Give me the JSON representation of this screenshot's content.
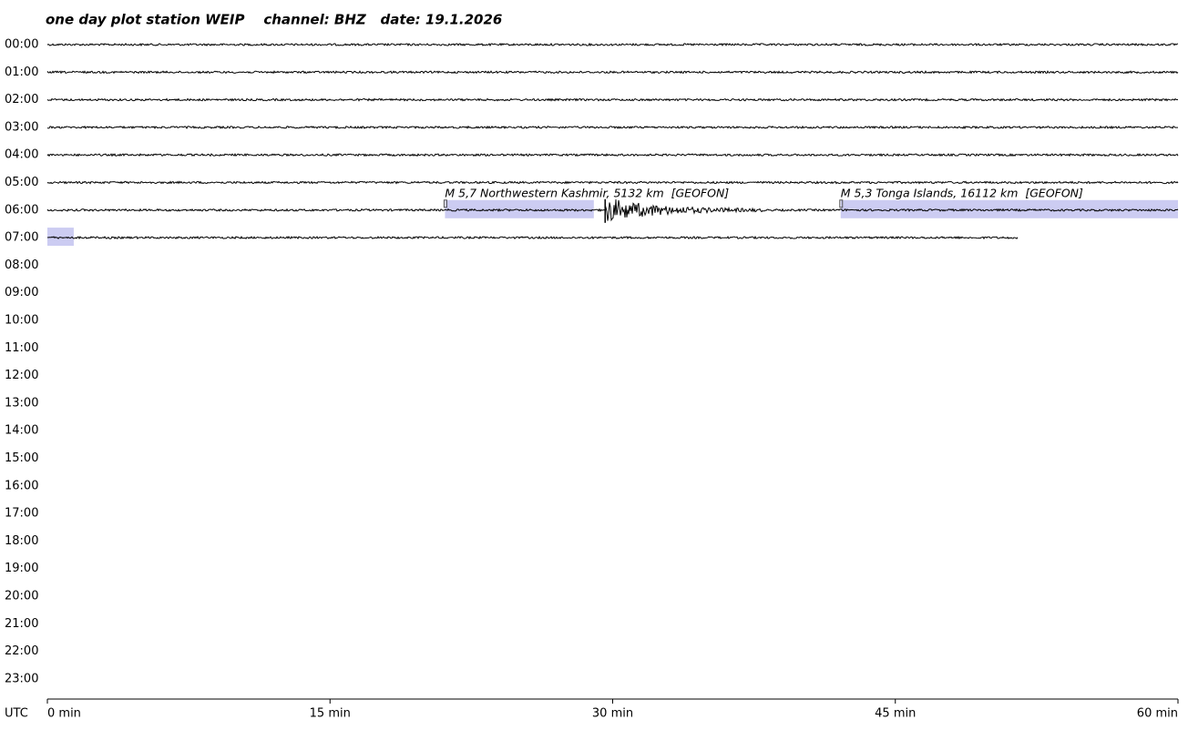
{
  "chart_data": {
    "type": "helicorder",
    "title": "one day plot station WEIP    channel: BHZ   date: 19.1.2026",
    "x_label": "UTC",
    "xlim": [
      0,
      60
    ],
    "xticks": [
      {
        "value": 0,
        "label": "0 min"
      },
      {
        "value": 15,
        "label": "15 min"
      },
      {
        "value": 30,
        "label": "30 min"
      },
      {
        "value": 45,
        "label": "45 min"
      },
      {
        "value": 60,
        "label": "60 min"
      }
    ],
    "rows": [
      "00:00",
      "01:00",
      "02:00",
      "03:00",
      "04:00",
      "05:00",
      "06:00",
      "07:00",
      "08:00",
      "09:00",
      "10:00",
      "11:00",
      "12:00",
      "13:00",
      "14:00",
      "15:00",
      "16:00",
      "17:00",
      "18:00",
      "19:00",
      "20:00",
      "21:00",
      "22:00",
      "23:00"
    ],
    "trace_end": 471.5,
    "trace_color": "#000000",
    "bursts": [
      {
        "start": 389.6,
        "end": 398
      }
    ],
    "events": [
      {
        "label": "M 5,7 Northwestern Kashmir, 5132 km  [GEOFON]",
        "start": 381.1,
        "end": 389.0
      },
      {
        "label": "M 5,3 Tonga Islands, 16112 km  [GEOFON]",
        "start": 402.1,
        "end": 421.4
      }
    ],
    "event_color": "#1a1aa6",
    "highlight_color": "#ccccf2"
  }
}
